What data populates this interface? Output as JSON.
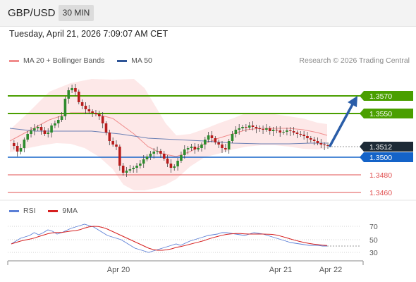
{
  "header": {
    "symbol": "GBP/USD",
    "timeframe": "30 MIN"
  },
  "datetime": "Tuesday, April 21, 2026 7:09:07 AM CET",
  "legend": {
    "bollinger_label": "MA 20 + Bollinger Bands",
    "ma50_label": "MA 50",
    "bollinger_color": "#f08c8c",
    "ma50_color": "#2f5597"
  },
  "credit": "Research © 2026 Trading Central",
  "levels": [
    {
      "label": "1.3570",
      "kind": "target"
    },
    {
      "label": "1.3550",
      "kind": "target"
    },
    {
      "label": "1.3512",
      "kind": "last"
    },
    {
      "label": "1.3500",
      "kind": "pivot"
    },
    {
      "label": "1.3480",
      "kind": "support"
    },
    {
      "label": "1.3460",
      "kind": "support"
    }
  ],
  "rsi": {
    "rsi_label": "RSI",
    "ma_label": "9MA",
    "rsi_color": "#5b7fd6",
    "ma_color": "#d61f1f",
    "levels": [
      "70",
      "50",
      "30"
    ]
  },
  "dates": [
    "Apr 20",
    "Apr 21",
    "Apr 22"
  ],
  "colors": {
    "up": "#2e8b2e",
    "down": "#b71c1c",
    "target": "#4a9f00",
    "pivot": "#1463c8",
    "support": "#e15050",
    "arrow": "#2a5da8"
  }
}
